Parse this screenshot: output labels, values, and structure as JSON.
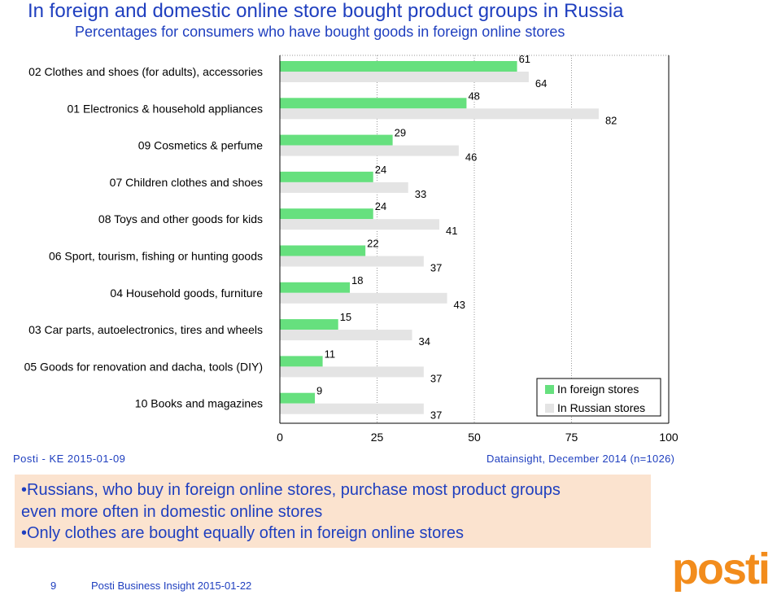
{
  "header": {
    "title": "In foreign and domestic online store bought product groups in Russia",
    "subtitle": "Percentages for consumers who have bought goods in foreign online stores"
  },
  "chart_data": {
    "type": "bar",
    "orientation": "horizontal",
    "categories": [
      "02 Clothes and shoes (for adults), accessories",
      "01 Electronics & household appliances",
      "09 Cosmetics & perfume",
      "07 Children clothes and shoes",
      "08 Toys and other goods for kids",
      "06 Sport, tourism, fishing or hunting goods",
      "04 Household goods, furniture",
      "03 Car parts, autoelectronics, tires and wheels",
      "05 Goods for renovation and dacha, tools (DIY)",
      "10 Books and magazines"
    ],
    "series": [
      {
        "name": "In foreign stores",
        "color": "#66e07e",
        "values": [
          61,
          48,
          29,
          24,
          24,
          22,
          18,
          15,
          11,
          9
        ]
      },
      {
        "name": "In Russian stores",
        "color": "#e4e4e4",
        "values": [
          64,
          82,
          46,
          33,
          41,
          37,
          43,
          34,
          37,
          37
        ]
      }
    ],
    "xlim": [
      0,
      100
    ],
    "xticks": [
      0,
      25,
      50,
      75,
      100
    ],
    "legend": "bottom-right"
  },
  "footer": {
    "source_left": "Posti - KE 2015-01-09",
    "source_right": "Datainsight, December 2014 (n=1026)",
    "page_number": "9",
    "doc_title": "Posti Business Insight 2015-01-22"
  },
  "note": {
    "lines": [
      "•Russians, who buy in foreign online stores, purchase most product groups",
      "even more often in domestic online stores",
      "•Only clothes are bought equally often in foreign online stores"
    ]
  },
  "logo": {
    "text": "posti",
    "color": "#f28c1c"
  }
}
